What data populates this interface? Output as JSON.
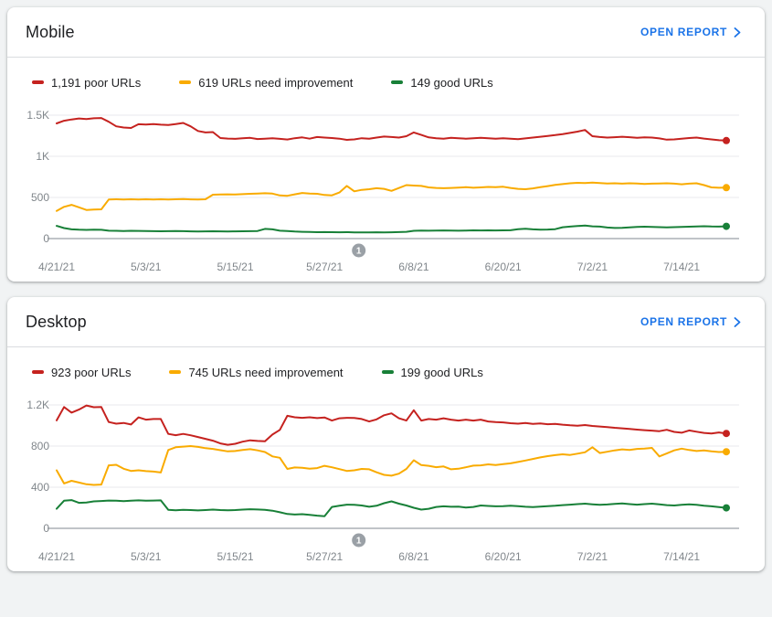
{
  "colors": {
    "poor": "#c5221f",
    "needs_improvement": "#f9ab00",
    "good": "#188038",
    "link": "#1a73e8",
    "axis_label": "#80868b",
    "gridline": "#e8eaed",
    "zero_line": "#9aa0a6",
    "annotation_bg": "#9aa0a6",
    "card_bg": "#ffffff",
    "page_bg": "#f1f3f4"
  },
  "cards": [
    {
      "title": "Mobile",
      "open_report_label": "OPEN REPORT",
      "legend": [
        {
          "label": "1,191 poor URLs",
          "series": "poor"
        },
        {
          "label": "619 URLs need improvement",
          "series": "needs_improvement"
        },
        {
          "label": "149 good URLs",
          "series": "good"
        }
      ],
      "chart_data": {
        "type": "line",
        "x_unit": "day",
        "x_start_date": "4/21/21",
        "x_end_date": "7/20/21",
        "x_ticks": [
          {
            "label": "4/21/21",
            "index": 0
          },
          {
            "label": "5/3/21",
            "index": 12
          },
          {
            "label": "5/15/21",
            "index": 24
          },
          {
            "label": "5/27/21",
            "index": 36
          },
          {
            "label": "6/8/21",
            "index": 48
          },
          {
            "label": "6/20/21",
            "index": 60
          },
          {
            "label": "7/2/21",
            "index": 72
          },
          {
            "label": "7/14/21",
            "index": 84
          }
        ],
        "y_ticks": [
          {
            "value": 0,
            "label": "0"
          },
          {
            "value": 500,
            "label": "500"
          },
          {
            "value": 1000,
            "label": "1K"
          },
          {
            "value": 1500,
            "label": "1.5K"
          }
        ],
        "ylim": [
          0,
          1666
        ],
        "grid": true,
        "annotation": {
          "label": "1",
          "x_index": 40.6
        },
        "series": [
          {
            "name": "poor URLs",
            "color_key": "poor",
            "current": 1191,
            "values": [
              1400,
              1432,
              1448,
              1460,
              1452,
              1462,
              1466,
              1420,
              1364,
              1350,
              1344,
              1390,
              1386,
              1392,
              1384,
              1380,
              1392,
              1406,
              1364,
              1308,
              1290,
              1294,
              1222,
              1216,
              1212,
              1220,
              1224,
              1210,
              1214,
              1220,
              1212,
              1204,
              1220,
              1230,
              1214,
              1234,
              1228,
              1222,
              1214,
              1200,
              1206,
              1220,
              1214,
              1228,
              1240,
              1234,
              1228,
              1244,
              1290,
              1260,
              1230,
              1220,
              1214,
              1224,
              1220,
              1214,
              1220,
              1226,
              1220,
              1214,
              1220,
              1214,
              1208,
              1218,
              1228,
              1238,
              1248,
              1258,
              1270,
              1284,
              1300,
              1320,
              1244,
              1234,
              1228,
              1232,
              1238,
              1232,
              1226,
              1230,
              1228,
              1218,
              1202,
              1206,
              1214,
              1222,
              1228,
              1216,
              1206,
              1196,
              1191
            ]
          },
          {
            "name": "URLs need improvement",
            "color_key": "needs_improvement",
            "current": 619,
            "values": [
              335,
              385,
              410,
              380,
              348,
              352,
              356,
              475,
              478,
              474,
              478,
              476,
              478,
              475,
              478,
              476,
              478,
              480,
              477,
              475,
              478,
              533,
              536,
              538,
              536,
              540,
              544,
              548,
              551,
              547,
              524,
              520,
              538,
              554,
              548,
              544,
              530,
              526,
              560,
              640,
              574,
              592,
              600,
              612,
              604,
              580,
              615,
              650,
              645,
              640,
              622,
              616,
              612,
              616,
              620,
              624,
              618,
              622,
              628,
              624,
              630,
              616,
              605,
              600,
              610,
              624,
              638,
              652,
              662,
              672,
              678,
              676,
              680,
              674,
              670,
              672,
              668,
              672,
              670,
              664,
              668,
              670,
              672,
              668,
              660,
              668,
              672,
              650,
              622,
              618,
              619
            ]
          },
          {
            "name": "good URLs",
            "color_key": "good",
            "current": 149,
            "values": [
              155,
              128,
              112,
              108,
              106,
              108,
              107,
              96,
              94,
              92,
              94,
              93,
              92,
              90,
              89,
              90,
              91,
              90,
              88,
              87,
              88,
              89,
              88,
              87,
              88,
              89,
              90,
              92,
              118,
              112,
              96,
              92,
              86,
              82,
              80,
              78,
              79,
              78,
              77,
              78,
              76,
              75,
              76,
              77,
              76,
              77,
              79,
              82,
              94,
              97,
              96,
              97,
              99,
              98,
              96,
              98,
              100,
              99,
              100,
              99,
              100,
              101,
              113,
              119,
              112,
              108,
              110,
              114,
              138,
              146,
              152,
              158,
              149,
              146,
              134,
              129,
              131,
              137,
              141,
              144,
              142,
              139,
              137,
              139,
              141,
              144,
              147,
              150,
              147,
              145,
              149
            ]
          }
        ]
      }
    },
    {
      "title": "Desktop",
      "open_report_label": "OPEN REPORT",
      "legend": [
        {
          "label": "923 poor URLs",
          "series": "poor"
        },
        {
          "label": "745 URLs need improvement",
          "series": "needs_improvement"
        },
        {
          "label": "199 good URLs",
          "series": "good"
        }
      ],
      "chart_data": {
        "type": "line",
        "x_unit": "day",
        "x_start_date": "4/21/21",
        "x_end_date": "7/20/21",
        "x_ticks": [
          {
            "label": "4/21/21",
            "index": 0
          },
          {
            "label": "5/3/21",
            "index": 12
          },
          {
            "label": "5/15/21",
            "index": 24
          },
          {
            "label": "5/27/21",
            "index": 36
          },
          {
            "label": "6/8/21",
            "index": 48
          },
          {
            "label": "6/20/21",
            "index": 60
          },
          {
            "label": "7/2/21",
            "index": 72
          },
          {
            "label": "7/14/21",
            "index": 84
          }
        ],
        "y_ticks": [
          {
            "value": 0,
            "label": "0"
          },
          {
            "value": 400,
            "label": "400"
          },
          {
            "value": 800,
            "label": "800"
          },
          {
            "value": 1200,
            "label": "1.2K"
          }
        ],
        "ylim": [
          0,
          1333
        ],
        "grid": true,
        "annotation": {
          "label": "1",
          "x_index": 40.6
        },
        "series": [
          {
            "name": "poor URLs",
            "color_key": "poor",
            "current": 923,
            "values": [
              1050,
              1180,
              1125,
              1155,
              1195,
              1178,
              1180,
              1034,
              1018,
              1025,
              1010,
              1079,
              1057,
              1063,
              1063,
              918,
              906,
              918,
              905,
              888,
              870,
              852,
              826,
              812,
              822,
              843,
              856,
              850,
              846,
              912,
              957,
              1094,
              1080,
              1075,
              1080,
              1072,
              1078,
              1048,
              1070,
              1075,
              1073,
              1063,
              1039,
              1060,
              1100,
              1118,
              1070,
              1048,
              1148,
              1048,
              1063,
              1057,
              1070,
              1057,
              1048,
              1057,
              1048,
              1057,
              1039,
              1033,
              1030,
              1022,
              1018,
              1024,
              1015,
              1020,
              1012,
              1016,
              1008,
              1002,
              998,
              1004,
              996,
              990,
              985,
              978,
              972,
              966,
              960,
              955,
              950,
              945,
              958,
              938,
              930,
              952,
              940,
              928,
              922,
              932,
              923
            ]
          },
          {
            "name": "URLs need improvement",
            "color_key": "needs_improvement",
            "current": 745,
            "values": [
              564,
              436,
              462,
              445,
              428,
              422,
              426,
              612,
              618,
              580,
              558,
              564,
              556,
              552,
              543,
              762,
              788,
              795,
              800,
              792,
              780,
              772,
              760,
              748,
              752,
              762,
              770,
              758,
              742,
              700,
              686,
              578,
              592,
              588,
              580,
              586,
              608,
              594,
              576,
              558,
              564,
              578,
              574,
              545,
              520,
              512,
              532,
              578,
              662,
              615,
              608,
              595,
              602,
              574,
              580,
              594,
              610,
              612,
              622,
              616,
              624,
              632,
              645,
              660,
              675,
              690,
              702,
              712,
              720,
              714,
              726,
              740,
              788,
              732,
              745,
              758,
              768,
              762,
              772,
              775,
              782,
              700,
              728,
              758,
              775,
              762,
              752,
              758,
              748,
              742,
              745
            ]
          },
          {
            "name": "good URLs",
            "color_key": "good",
            "current": 199,
            "values": [
              190,
              268,
              275,
              248,
              252,
              262,
              266,
              270,
              268,
              265,
              268,
              272,
              268,
              270,
              272,
              180,
              176,
              180,
              178,
              174,
              178,
              182,
              178,
              175,
              178,
              182,
              186,
              183,
              180,
              172,
              156,
              140,
              134,
              138,
              132,
              124,
              118,
              208,
              220,
              230,
              228,
              222,
              210,
              220,
              244,
              262,
              240,
              222,
              200,
              182,
              190,
              208,
              214,
              210,
              212,
              202,
              208,
              222,
              218,
              214,
              216,
              220,
              216,
              210,
              206,
              212,
              216,
              220,
              226,
              230,
              236,
              240,
              234,
              228,
              232,
              238,
              242,
              236,
              230,
              236,
              240,
              234,
              226,
              222,
              228,
              234,
              228,
              220,
              214,
              206,
              199
            ]
          }
        ]
      }
    }
  ]
}
